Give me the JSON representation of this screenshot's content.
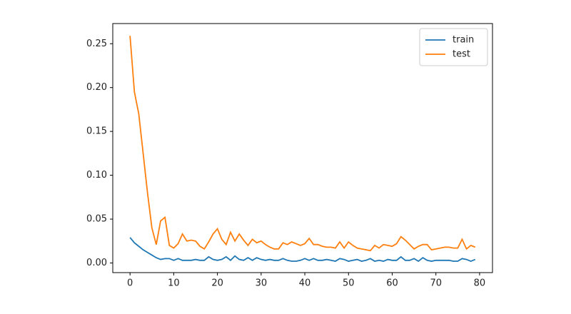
{
  "chart_data": {
    "type": "line",
    "x": [
      0,
      1,
      2,
      3,
      4,
      5,
      6,
      7,
      8,
      9,
      10,
      11,
      12,
      13,
      14,
      15,
      16,
      17,
      18,
      19,
      20,
      21,
      22,
      23,
      24,
      25,
      26,
      27,
      28,
      29,
      30,
      31,
      32,
      33,
      34,
      35,
      36,
      37,
      38,
      39,
      40,
      41,
      42,
      43,
      44,
      45,
      46,
      47,
      48,
      49,
      50,
      51,
      52,
      53,
      54,
      55,
      56,
      57,
      58,
      59,
      60,
      61,
      62,
      63,
      64,
      65,
      66,
      67,
      68,
      69,
      70,
      71,
      72,
      73,
      74,
      75,
      76,
      77,
      78,
      79
    ],
    "series": [
      {
        "name": "train",
        "color": "#1f77b4",
        "values": [
          0.029,
          0.023,
          0.019,
          0.015,
          0.012,
          0.009,
          0.006,
          0.004,
          0.005,
          0.005,
          0.003,
          0.005,
          0.003,
          0.003,
          0.003,
          0.004,
          0.003,
          0.003,
          0.007,
          0.004,
          0.003,
          0.004,
          0.007,
          0.003,
          0.008,
          0.004,
          0.003,
          0.006,
          0.003,
          0.006,
          0.004,
          0.003,
          0.004,
          0.003,
          0.003,
          0.005,
          0.003,
          0.002,
          0.002,
          0.003,
          0.005,
          0.003,
          0.005,
          0.003,
          0.003,
          0.004,
          0.003,
          0.002,
          0.005,
          0.004,
          0.002,
          0.003,
          0.004,
          0.002,
          0.003,
          0.005,
          0.002,
          0.003,
          0.002,
          0.004,
          0.003,
          0.003,
          0.007,
          0.003,
          0.003,
          0.005,
          0.002,
          0.006,
          0.003,
          0.002,
          0.003,
          0.003,
          0.003,
          0.003,
          0.002,
          0.002,
          0.005,
          0.004,
          0.002,
          0.004
        ]
      },
      {
        "name": "test",
        "color": "#ff7f0e",
        "values": [
          0.259,
          0.195,
          0.17,
          0.125,
          0.08,
          0.04,
          0.021,
          0.048,
          0.052,
          0.02,
          0.017,
          0.022,
          0.033,
          0.025,
          0.026,
          0.025,
          0.019,
          0.016,
          0.024,
          0.033,
          0.039,
          0.027,
          0.021,
          0.035,
          0.025,
          0.033,
          0.026,
          0.02,
          0.027,
          0.023,
          0.025,
          0.021,
          0.018,
          0.016,
          0.016,
          0.023,
          0.021,
          0.024,
          0.022,
          0.02,
          0.022,
          0.028,
          0.021,
          0.021,
          0.019,
          0.018,
          0.018,
          0.017,
          0.024,
          0.017,
          0.024,
          0.02,
          0.017,
          0.016,
          0.015,
          0.014,
          0.02,
          0.017,
          0.021,
          0.02,
          0.019,
          0.022,
          0.03,
          0.026,
          0.021,
          0.016,
          0.019,
          0.021,
          0.021,
          0.015,
          0.016,
          0.017,
          0.018,
          0.018,
          0.017,
          0.017,
          0.027,
          0.016,
          0.02,
          0.018
        ]
      }
    ],
    "xlim": [
      -3.95,
      82.95
    ],
    "xticks": [
      0,
      10,
      20,
      30,
      40,
      50,
      60,
      70,
      80
    ],
    "ylim": [
      -0.011,
      0.273
    ],
    "yticks": [
      {
        "value": 0,
        "label": "0.00"
      },
      0.05,
      {
        "value": 0.1,
        "label": "0.10"
      },
      0.15,
      {
        "value": 0.2,
        "label": "0.20"
      },
      0.25
    ],
    "legend": "upper right",
    "grid": false
  }
}
